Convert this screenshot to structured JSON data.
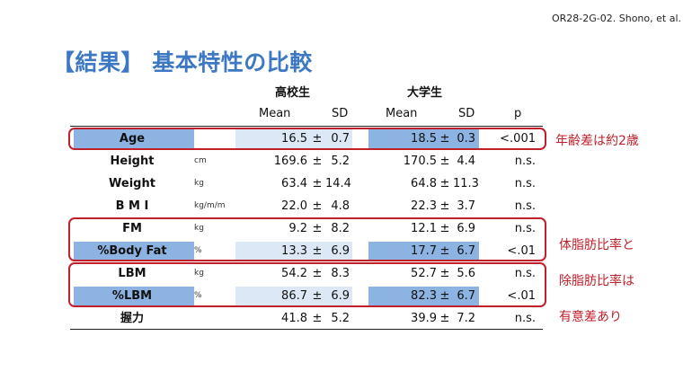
{
  "reference": "OR28-2G-02. Shono, et al.",
  "title": "【結果】 基本特性の比較",
  "groups": {
    "high_school": "高校生",
    "university": "大学生"
  },
  "headers": {
    "mean": "Mean",
    "sd": "SD",
    "p": "p"
  },
  "pm": "±",
  "rows": [
    {
      "label": "Age",
      "unit": "",
      "hs_mean": "16.5",
      "hs_sd": "0.7",
      "un_mean": "18.5",
      "un_sd": "0.3",
      "p": "<.001"
    },
    {
      "label": "Height",
      "unit": "cm",
      "hs_mean": "169.6",
      "hs_sd": "5.2",
      "un_mean": "170.5",
      "un_sd": "4.4",
      "p": "n.s."
    },
    {
      "label": "Weight",
      "unit": "kg",
      "hs_mean": "63.4",
      "hs_sd": "14.4",
      "un_mean": "64.8",
      "un_sd": "11.3",
      "p": "n.s."
    },
    {
      "label": "B M I",
      "unit": "kg/m/m",
      "hs_mean": "22.0",
      "hs_sd": "4.8",
      "un_mean": "22.3",
      "un_sd": "3.7",
      "p": "n.s."
    },
    {
      "label": "FM",
      "unit": "kg",
      "hs_mean": "9.2",
      "hs_sd": "8.2",
      "un_mean": "12.1",
      "un_sd": "6.9",
      "p": "n.s."
    },
    {
      "label": "%Body Fat",
      "unit": "%",
      "hs_mean": "13.3",
      "hs_sd": "6.9",
      "un_mean": "17.7",
      "un_sd": "6.7",
      "p": "<.01"
    },
    {
      "label": "LBM",
      "unit": "kg",
      "hs_mean": "54.2",
      "hs_sd": "8.3",
      "un_mean": "52.7",
      "un_sd": "5.6",
      "p": "n.s."
    },
    {
      "label": "%LBM",
      "unit": "%",
      "hs_mean": "86.7",
      "hs_sd": "6.9",
      "un_mean": "82.3",
      "un_sd": "6.7",
      "p": "<.01"
    },
    {
      "label": "握力",
      "unit": "",
      "hs_mean": "41.8",
      "hs_sd": "5.2",
      "un_mean": "39.9",
      "un_sd": "7.2",
      "p": "n.s."
    }
  ],
  "annotations": {
    "age": "年齢差は約2歳",
    "fat_line1": "体脂肪比率と",
    "fat_line2": "除脂肪比率は",
    "fat_line3": "有意差あり"
  },
  "colors": {
    "title": "#3c78c3",
    "highlight_strong": "#8db3e2",
    "highlight_light": "#dce8f6",
    "annotation": "#c0202a"
  }
}
